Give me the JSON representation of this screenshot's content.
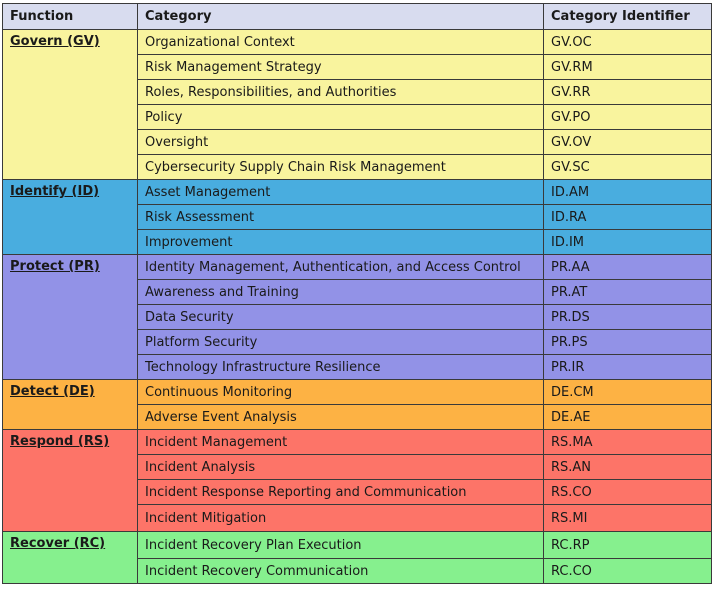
{
  "headers": {
    "function": "Function",
    "category": "Category",
    "identifier": "Category Identifier"
  },
  "groups": [
    {
      "function": "Govern (GV)",
      "color": "#f9f49e",
      "rows": [
        {
          "category": "Organizational Context",
          "id": "GV.OC"
        },
        {
          "category": "Risk Management Strategy",
          "id": "GV.RM"
        },
        {
          "category": "Roles, Responsibilities, and Authorities",
          "id": "GV.RR"
        },
        {
          "category": "Policy",
          "id": "GV.PO"
        },
        {
          "category": "Oversight",
          "id": "GV.OV"
        },
        {
          "category": "Cybersecurity Supply Chain Risk Management",
          "id": "GV.SC"
        }
      ]
    },
    {
      "function": "Identify (ID)",
      "color": "#49addf",
      "rows": [
        {
          "category": "Asset Management",
          "id": "ID.AM"
        },
        {
          "category": "Risk Assessment",
          "id": "ID.RA"
        },
        {
          "category": "Improvement",
          "id": "ID.IM"
        }
      ]
    },
    {
      "function": "Protect (PR)",
      "color": "#9292e7",
      "rows": [
        {
          "category": "Identity Management, Authentication, and Access Control",
          "id": "PR.AA"
        },
        {
          "category": "Awareness and Training",
          "id": "PR.AT"
        },
        {
          "category": "Data Security",
          "id": "PR.DS"
        },
        {
          "category": "Platform Security",
          "id": "PR.PS"
        },
        {
          "category": "Technology Infrastructure Resilience",
          "id": "PR.IR"
        }
      ]
    },
    {
      "function": "Detect (DE)",
      "color": "#fdb244",
      "rows": [
        {
          "category": "Continuous Monitoring",
          "id": "DE.CM"
        },
        {
          "category": "Adverse Event Analysis",
          "id": "DE.AE"
        }
      ]
    },
    {
      "function": "Respond (RS)",
      "color": "#fd7468",
      "rows": [
        {
          "category": "Incident Management",
          "id": "RS.MA"
        },
        {
          "category": "Incident Analysis",
          "id": "RS.AN"
        },
        {
          "category": "Incident Response Reporting and Communication",
          "id": "RS.CO"
        },
        {
          "category": "Incident Mitigation",
          "id": "RS.MI"
        }
      ]
    },
    {
      "function": "Recover (RC)",
      "color": "#86f08e",
      "rows": [
        {
          "category": "Incident Recovery Plan Execution",
          "id": "RC.RP"
        },
        {
          "category": "Incident Recovery Communication",
          "id": "RC.CO"
        }
      ]
    }
  ]
}
